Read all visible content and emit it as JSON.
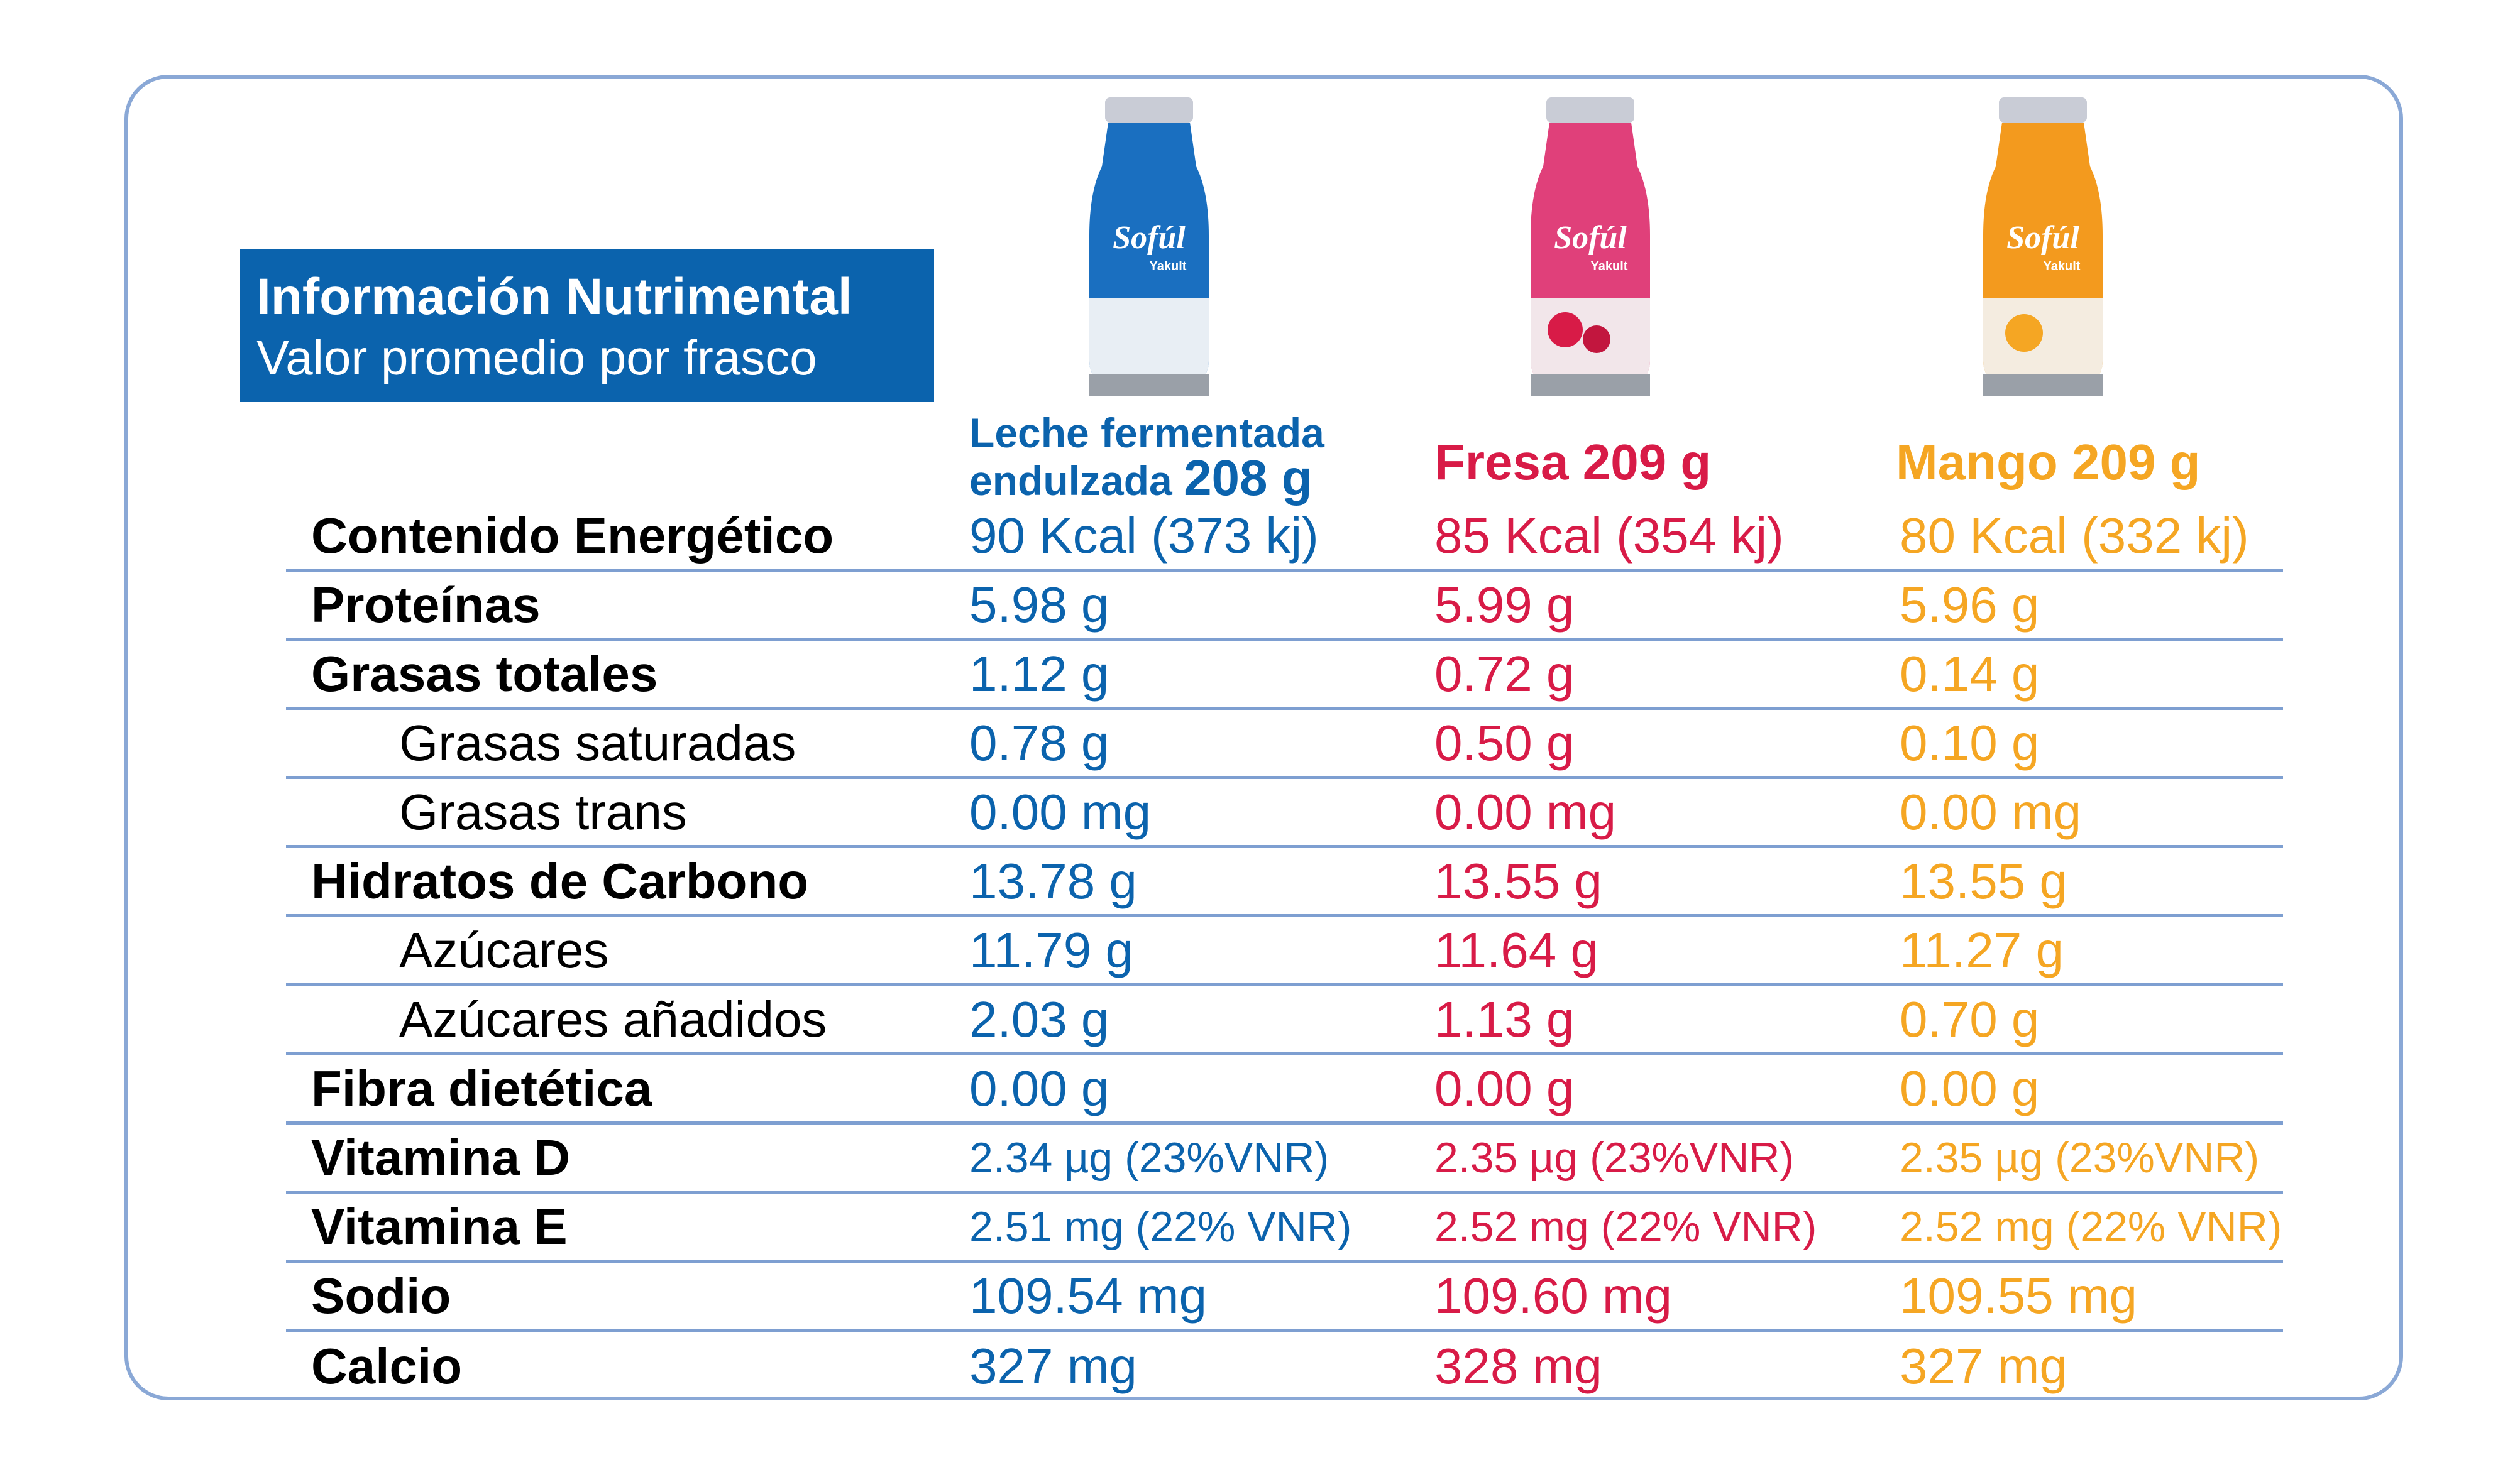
{
  "title": {
    "line1": "Información Nutrimental",
    "line2": "Valor promedio por frasco"
  },
  "products": [
    {
      "name": "Leche fermentada",
      "name2": "endulzada",
      "weight": "208 g",
      "color": "#0b63ad",
      "bottle_brand": "Sofúl",
      "bottle_sub": "Yakult"
    },
    {
      "name": "Fresa 209 g",
      "color": "#d81b47",
      "bottle_brand": "Sofúl",
      "bottle_sub": "Yakult"
    },
    {
      "name": "Mango 209 g",
      "color": "#f5a623",
      "bottle_brand": "Sofúl",
      "bottle_sub": "Yakult"
    }
  ],
  "rows": [
    {
      "label": "Contenido Energético",
      "values": [
        "90 Kcal (373 kj)",
        "85 Kcal (354 kj)",
        "80 Kcal (332 kj)"
      ]
    },
    {
      "label": "Proteínas",
      "values": [
        "5.98 g",
        "5.99 g",
        "5.96 g"
      ]
    },
    {
      "label": "Grasas totales",
      "values": [
        "1.12 g",
        "0.72 g",
        "0.14 g"
      ]
    },
    {
      "label": "Grasas saturadas",
      "values": [
        "0.78 g",
        "0.50 g",
        "0.10 g"
      ]
    },
    {
      "label": "Grasas trans",
      "values": [
        "0.00 mg",
        "0.00 mg",
        "0.00 mg"
      ]
    },
    {
      "label": "Hidratos de Carbono",
      "values": [
        "13.78 g",
        "13.55 g",
        "13.55 g"
      ]
    },
    {
      "label": "Azúcares",
      "values": [
        "11.79 g",
        "11.64 g",
        "11.27 g"
      ]
    },
    {
      "label": "Azúcares añadidos",
      "values": [
        "2.03 g",
        "1.13 g",
        "0.70 g"
      ]
    },
    {
      "label": "Fibra dietética",
      "values": [
        "0.00 g",
        "0.00 g",
        "0.00 g"
      ]
    },
    {
      "label": "Vitamina D",
      "values": [
        "2.34 µg (23%VNR)",
        "2.35 µg (23%VNR)",
        "2.35 µg (23%VNR)"
      ]
    },
    {
      "label": "Vitamina E",
      "values": [
        "2.51 mg (22% VNR)",
        "2.52 mg (22% VNR)",
        "2.52 mg (22% VNR)"
      ]
    },
    {
      "label": "Sodio",
      "values": [
        "109.54 mg",
        "109.60 mg",
        "109.55 mg"
      ]
    },
    {
      "label": "Calcio",
      "values": [
        "327 mg",
        "328 mg",
        "327 mg"
      ]
    }
  ]
}
